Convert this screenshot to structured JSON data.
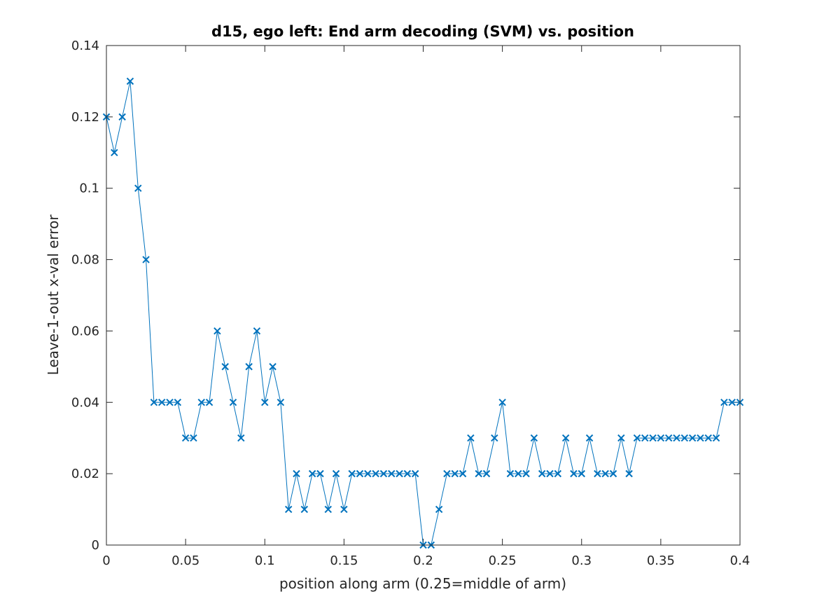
{
  "chart_data": {
    "type": "line",
    "title": "d15, ego left: End arm decoding (SVM) vs. position",
    "xlabel": "position along arm (0.25=middle of arm)",
    "ylabel": "Leave-1-out x-val error",
    "xlim": [
      0,
      0.4
    ],
    "ylim": [
      0,
      0.14
    ],
    "xticks": [
      0,
      0.05,
      0.1,
      0.15,
      0.2,
      0.25,
      0.3,
      0.35,
      0.4
    ],
    "xtick_labels": [
      "0",
      "0.05",
      "0.1",
      "0.15",
      "0.2",
      "0.25",
      "0.3",
      "0.35",
      "0.4"
    ],
    "yticks": [
      0,
      0.02,
      0.04,
      0.06,
      0.08,
      0.1,
      0.12,
      0.14
    ],
    "ytick_labels": [
      "0",
      "0.02",
      "0.04",
      "0.06",
      "0.08",
      "0.1",
      "0.12",
      "0.14"
    ],
    "grid": false,
    "marker": "x",
    "color": "#0072BD",
    "series": [
      {
        "x": [
          0,
          0.005,
          0.01,
          0.015,
          0.02,
          0.025,
          0.03,
          0.035,
          0.04,
          0.045,
          0.05,
          0.055,
          0.06,
          0.065,
          0.07,
          0.075,
          0.08,
          0.085,
          0.09,
          0.095,
          0.1,
          0.105,
          0.11,
          0.115,
          0.12,
          0.125,
          0.13,
          0.135,
          0.14,
          0.145,
          0.15,
          0.155,
          0.16,
          0.165,
          0.17,
          0.175,
          0.18,
          0.185,
          0.19,
          0.195,
          0.2,
          0.205,
          0.21,
          0.215,
          0.22,
          0.225,
          0.23,
          0.235,
          0.24,
          0.245,
          0.25,
          0.255,
          0.26,
          0.265,
          0.27,
          0.275,
          0.28,
          0.285,
          0.29,
          0.295,
          0.3,
          0.305,
          0.31,
          0.315,
          0.32,
          0.325,
          0.33,
          0.335,
          0.34,
          0.345,
          0.35,
          0.355,
          0.36,
          0.365,
          0.37,
          0.375,
          0.38,
          0.385,
          0.39,
          0.395,
          0.4
        ],
        "y": [
          0.12,
          0.11,
          0.12,
          0.13,
          0.1,
          0.08,
          0.04,
          0.04,
          0.04,
          0.04,
          0.03,
          0.03,
          0.04,
          0.04,
          0.06,
          0.05,
          0.04,
          0.03,
          0.05,
          0.06,
          0.04,
          0.05,
          0.04,
          0.01,
          0.02,
          0.01,
          0.02,
          0.02,
          0.01,
          0.02,
          0.01,
          0.02,
          0.02,
          0.02,
          0.02,
          0.02,
          0.02,
          0.02,
          0.02,
          0.02,
          0.0,
          0.0,
          0.01,
          0.02,
          0.02,
          0.02,
          0.03,
          0.02,
          0.02,
          0.03,
          0.04,
          0.02,
          0.02,
          0.02,
          0.03,
          0.02,
          0.02,
          0.02,
          0.03,
          0.02,
          0.02,
          0.03,
          0.02,
          0.02,
          0.02,
          0.03,
          0.02,
          0.03,
          0.03,
          0.03,
          0.03,
          0.03,
          0.03,
          0.03,
          0.03,
          0.03,
          0.03,
          0.03,
          0.04,
          0.04,
          0.04
        ]
      }
    ]
  }
}
